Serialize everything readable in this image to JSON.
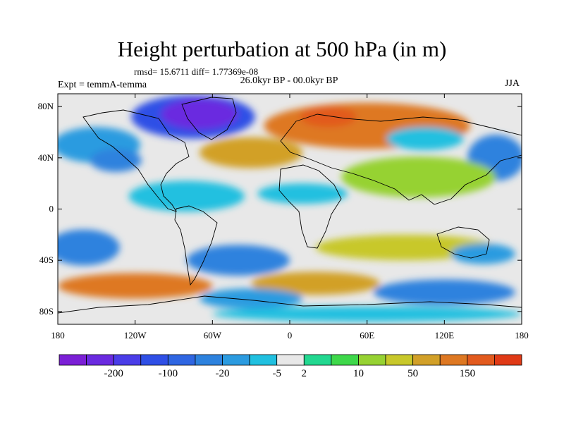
{
  "header": {
    "title": "Height perturbation at 500 hPa (in m)",
    "stats": "rmsd= 15.6711 diff= 1.77369e-08",
    "period": "26.0kyr BP - 00.0kyr BP",
    "experiment": "Expt = temmA-temma",
    "season": "JJA"
  },
  "chart_data": {
    "type": "heatmap",
    "title": "Height perturbation at 500 hPa (in m)",
    "projection": "cylindrical equidistant",
    "xlim": [
      -180,
      180
    ],
    "ylim": [
      -90,
      90
    ],
    "x_ticks": [
      {
        "value": -180,
        "label": "180"
      },
      {
        "value": -120,
        "label": "120W"
      },
      {
        "value": -60,
        "label": "60W"
      },
      {
        "value": 0,
        "label": "0"
      },
      {
        "value": 60,
        "label": "60E"
      },
      {
        "value": 120,
        "label": "120E"
      },
      {
        "value": 180,
        "label": "180"
      }
    ],
    "y_ticks": [
      {
        "value": 80,
        "label": "80N"
      },
      {
        "value": 40,
        "label": "40N"
      },
      {
        "value": 0,
        "label": "0"
      },
      {
        "value": -40,
        "label": "40S"
      },
      {
        "value": -80,
        "label": "80S"
      }
    ],
    "colorbar": {
      "colors": [
        "#7b1fd6",
        "#6a2ae0",
        "#4a3de8",
        "#2f4fe6",
        "#2f66e2",
        "#2d82de",
        "#2b9be0",
        "#20c0e0",
        "#e8e8e8",
        "#22d890",
        "#3ed84a",
        "#96d232",
        "#c8c82a",
        "#d2a028",
        "#de7822",
        "#e25a1e",
        "#e03a16"
      ],
      "labels": [
        "-200",
        "-100",
        "-20",
        "-5",
        "2",
        "10",
        "50",
        "150"
      ],
      "label_after_box": [
        1,
        3,
        5,
        7,
        8,
        10,
        12,
        14
      ]
    },
    "regions": [
      {
        "lon": -75,
        "lat": 72,
        "value": -120,
        "rx": 48,
        "ry": 17
      },
      {
        "lon": -70,
        "lat": 74,
        "value": -200,
        "rx": 30,
        "ry": 12
      },
      {
        "lon": -150,
        "lat": 50,
        "value": -15,
        "rx": 34,
        "ry": 14
      },
      {
        "lon": -135,
        "lat": 38,
        "value": -25,
        "rx": 20,
        "ry": 9
      },
      {
        "lon": 60,
        "lat": 65,
        "value": 60,
        "rx": 80,
        "ry": 18
      },
      {
        "lon": 30,
        "lat": 72,
        "value": 140,
        "rx": 22,
        "ry": 8
      },
      {
        "lon": -30,
        "lat": 44,
        "value": 50,
        "rx": 40,
        "ry": 12
      },
      {
        "lon": 105,
        "lat": 55,
        "value": -8,
        "rx": 30,
        "ry": 9
      },
      {
        "lon": 160,
        "lat": 40,
        "value": -20,
        "rx": 22,
        "ry": 18
      },
      {
        "lon": 100,
        "lat": 25,
        "value": 8,
        "rx": 60,
        "ry": 16
      },
      {
        "lon": -80,
        "lat": 10,
        "value": -5,
        "rx": 45,
        "ry": 12
      },
      {
        "lon": 10,
        "lat": 12,
        "value": -6,
        "rx": 35,
        "ry": 8
      },
      {
        "lon": 90,
        "lat": -30,
        "value": 12,
        "rx": 70,
        "ry": 10
      },
      {
        "lon": -160,
        "lat": -30,
        "value": -25,
        "rx": 28,
        "ry": 14
      },
      {
        "lon": -40,
        "lat": -40,
        "value": -20,
        "rx": 40,
        "ry": 12
      },
      {
        "lon": 150,
        "lat": -35,
        "value": -10,
        "rx": 25,
        "ry": 8
      },
      {
        "lon": -120,
        "lat": -60,
        "value": 70,
        "rx": 60,
        "ry": 10
      },
      {
        "lon": 20,
        "lat": -58,
        "value": 40,
        "rx": 50,
        "ry": 9
      },
      {
        "lon": 120,
        "lat": -65,
        "value": -25,
        "rx": 55,
        "ry": 10
      },
      {
        "lon": -30,
        "lat": -70,
        "value": -12,
        "rx": 40,
        "ry": 8
      },
      {
        "lon": 60,
        "lat": -82,
        "value": -6,
        "rx": 120,
        "ry": 6
      }
    ]
  }
}
